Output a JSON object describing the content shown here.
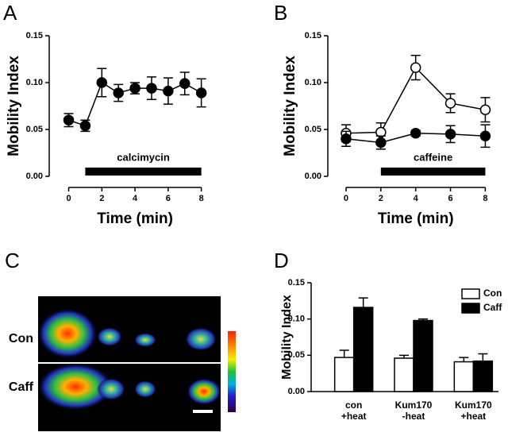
{
  "chart_data": [
    {
      "type": "line",
      "panel_label": "A",
      "y_label": "Mobility Index",
      "x_label": "Time (min)",
      "x": [
        0,
        1,
        2,
        3,
        4,
        5,
        6,
        7,
        8
      ],
      "series": [
        {
          "color": "#000000",
          "fill": "#000000",
          "values": [
            0.06,
            0.054,
            0.1,
            0.089,
            0.094,
            0.094,
            0.091,
            0.099,
            0.089
          ],
          "errors": [
            0.007,
            0.006,
            0.015,
            0.009,
            0.006,
            0.012,
            0.014,
            0.012,
            0.015
          ]
        }
      ],
      "annotation": {
        "text": "calcimycin",
        "x_start": 1,
        "x_end": 8
      },
      "xlim": [
        -0.6,
        8.4
      ],
      "xticks": [
        0,
        2,
        4,
        6,
        8
      ],
      "ylim": [
        0,
        0.15
      ],
      "yticks": [
        {
          "value": 0,
          "label": "0.00"
        },
        0.05,
        {
          "value": 0.1,
          "label": "0.10"
        },
        0.15
      ]
    },
    {
      "type": "line",
      "panel_label": "B",
      "y_label": "Mobility Index",
      "x_label": "Time (min)",
      "x": [
        0,
        2,
        4,
        6,
        8
      ],
      "series": [
        {
          "color": "#000000",
          "fill": "#ffffff",
          "values": [
            0.046,
            0.047,
            0.116,
            0.078,
            0.071
          ],
          "errors": [
            0.009,
            0.01,
            0.013,
            0.01,
            0.013
          ]
        },
        {
          "color": "#000000",
          "fill": "#000000",
          "values": [
            0.04,
            0.036,
            0.046,
            0.045,
            0.043
          ],
          "errors": [
            0.008,
            0.007,
            0.003,
            0.009,
            0.012
          ]
        }
      ],
      "annotation": {
        "text": "caffeine",
        "x_start": 2,
        "x_end": 8
      },
      "xlim": [
        -0.5,
        8.3
      ],
      "xticks": [
        0,
        2,
        4,
        6,
        8
      ],
      "ylim": [
        0,
        0.15
      ],
      "yticks": [
        {
          "value": 0,
          "label": "0.00"
        },
        0.05,
        {
          "value": 0.1,
          "label": "0.10"
        },
        0.15
      ]
    },
    {
      "type": "bar",
      "panel_label": "D",
      "y_label": "Mobility Index",
      "categories": [
        "con\n+heat",
        "Kum170\n-heat",
        "Kum170\n+heat"
      ],
      "series": [
        {
          "name": "Con",
          "color": "#ffffff",
          "values": [
            0.047,
            0.046,
            0.041
          ],
          "errors": [
            0.01,
            0.004,
            0.006
          ]
        },
        {
          "name": "Caff",
          "color": "#000000",
          "values": [
            0.116,
            0.098,
            0.042
          ],
          "errors": [
            0.013,
            0.002,
            0.01
          ]
        }
      ],
      "ylim": [
        0,
        0.15
      ],
      "yticks": [
        {
          "value": 0,
          "label": "0.00"
        },
        0.05,
        {
          "value": 0.1,
          "label": "0.10"
        },
        0.15
      ],
      "legend": "upper right"
    }
  ],
  "image_panel": {
    "panel_label": "C",
    "rows": [
      "Con",
      "Caff"
    ]
  }
}
